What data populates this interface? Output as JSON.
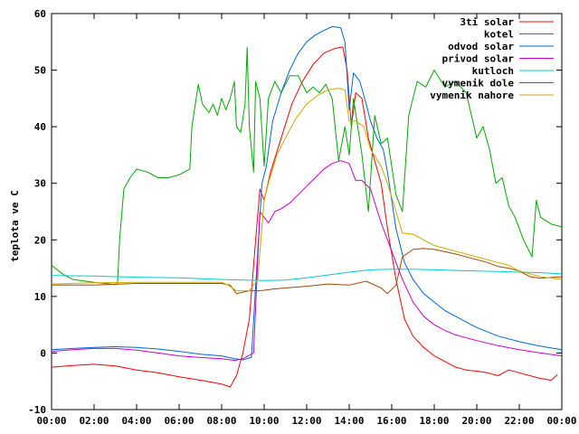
{
  "chart_data": {
    "type": "line",
    "title": "",
    "xlabel": "",
    "ylabel": "teplota ve C",
    "xlim": [
      "00:00",
      "24:00"
    ],
    "ylim": [
      -10,
      60
    ],
    "grid": false,
    "legend_position": "top-right",
    "x_ticks": [
      "00:00",
      "02:00",
      "04:00",
      "06:00",
      "08:00",
      "10:00",
      "12:00",
      "14:00",
      "16:00",
      "18:00",
      "20:00",
      "22:00",
      "00:00"
    ],
    "y_ticks": [
      "-10",
      "0",
      "10",
      "20",
      "30",
      "40",
      "50",
      "60"
    ],
    "x_unit": "hours",
    "series": [
      {
        "name": "3ti solar",
        "color": "#ff0000",
        "points": [
          [
            0,
            -2.5
          ],
          [
            1,
            -2.2
          ],
          [
            2,
            -2
          ],
          [
            3,
            -2.3
          ],
          [
            4,
            -3
          ],
          [
            5,
            -3.5
          ],
          [
            6,
            -4.2
          ],
          [
            7,
            -4.8
          ],
          [
            8,
            -5.5
          ],
          [
            8.4,
            -6
          ],
          [
            8.7,
            -4
          ],
          [
            9.0,
            0
          ],
          [
            9.3,
            6
          ],
          [
            9.6,
            20
          ],
          [
            9.8,
            29
          ],
          [
            10.0,
            27
          ],
          [
            10.3,
            32
          ],
          [
            10.8,
            38
          ],
          [
            11.3,
            44
          ],
          [
            11.8,
            48
          ],
          [
            12.3,
            51
          ],
          [
            12.8,
            53
          ],
          [
            13.3,
            53.8
          ],
          [
            13.7,
            54.1
          ],
          [
            13.9,
            50
          ],
          [
            14.1,
            40
          ],
          [
            14.3,
            46
          ],
          [
            14.6,
            45
          ],
          [
            14.9,
            38
          ],
          [
            15.2,
            34
          ],
          [
            15.5,
            30
          ],
          [
            15.8,
            22
          ],
          [
            16.2,
            13
          ],
          [
            16.6,
            6
          ],
          [
            17,
            3
          ],
          [
            17.5,
            1
          ],
          [
            18,
            -0.5
          ],
          [
            18.5,
            -1.5
          ],
          [
            19,
            -2.5
          ],
          [
            19.5,
            -3
          ],
          [
            20,
            -3.2
          ],
          [
            20.5,
            -3.5
          ],
          [
            21,
            -4
          ],
          [
            21.5,
            -3
          ],
          [
            22,
            -3.5
          ],
          [
            22.5,
            -4
          ],
          [
            23,
            -4.5
          ],
          [
            23.5,
            -4.8
          ],
          [
            23.8,
            -3.8
          ]
        ]
      },
      {
        "name": "kotel",
        "color": "#00aa00",
        "points": [
          [
            0,
            15.5
          ],
          [
            0.5,
            14
          ],
          [
            1,
            13
          ],
          [
            2,
            12.5
          ],
          [
            3,
            12.1
          ],
          [
            3.1,
            12.3
          ],
          [
            3.2,
            20
          ],
          [
            3.4,
            29
          ],
          [
            3.7,
            31
          ],
          [
            4,
            32.5
          ],
          [
            4.5,
            32
          ],
          [
            5,
            31
          ],
          [
            5.5,
            31
          ],
          [
            6,
            31.5
          ],
          [
            6.5,
            32.5
          ],
          [
            6.6,
            40
          ],
          [
            6.9,
            47.5
          ],
          [
            7.1,
            44
          ],
          [
            7.4,
            42.5
          ],
          [
            7.6,
            44
          ],
          [
            7.8,
            42
          ],
          [
            8,
            45
          ],
          [
            8.2,
            43
          ],
          [
            8.4,
            45
          ],
          [
            8.6,
            48
          ],
          [
            8.7,
            40
          ],
          [
            8.9,
            39
          ],
          [
            9.1,
            44
          ],
          [
            9.2,
            54
          ],
          [
            9.3,
            40
          ],
          [
            9.5,
            32
          ],
          [
            9.6,
            48
          ],
          [
            9.8,
            45
          ],
          [
            10,
            33
          ],
          [
            10.2,
            45
          ],
          [
            10.5,
            48
          ],
          [
            10.8,
            46
          ],
          [
            11.2,
            49
          ],
          [
            11.6,
            49
          ],
          [
            12,
            46
          ],
          [
            12.3,
            47
          ],
          [
            12.6,
            46
          ],
          [
            12.9,
            47.5
          ],
          [
            13.2,
            45
          ],
          [
            13.5,
            34
          ],
          [
            13.8,
            40
          ],
          [
            14,
            35
          ],
          [
            14.2,
            45
          ],
          [
            14.6,
            35
          ],
          [
            14.9,
            25
          ],
          [
            15.2,
            42
          ],
          [
            15.5,
            37
          ],
          [
            15.8,
            38
          ],
          [
            16.2,
            28
          ],
          [
            16.5,
            25
          ],
          [
            16.8,
            42
          ],
          [
            17.2,
            48
          ],
          [
            17.6,
            47
          ],
          [
            18,
            50
          ],
          [
            18.5,
            47
          ],
          [
            19,
            48
          ],
          [
            19.5,
            46
          ],
          [
            20,
            38
          ],
          [
            20.3,
            40
          ],
          [
            20.6,
            36
          ],
          [
            20.9,
            30
          ],
          [
            21.2,
            31
          ],
          [
            21.5,
            26
          ],
          [
            21.8,
            24
          ],
          [
            22.2,
            20
          ],
          [
            22.6,
            17
          ],
          [
            22.8,
            27
          ],
          [
            23,
            24
          ],
          [
            23.5,
            22.8
          ],
          [
            24,
            22.3
          ]
        ]
      },
      {
        "name": "odvod solar",
        "color": "#0066dd",
        "points": [
          [
            0,
            0.6
          ],
          [
            1,
            0.8
          ],
          [
            2,
            1
          ],
          [
            3,
            1.1
          ],
          [
            4,
            1
          ],
          [
            5,
            0.7
          ],
          [
            6,
            0.3
          ],
          [
            7,
            -0.2
          ],
          [
            8,
            -0.5
          ],
          [
            8.6,
            -1
          ],
          [
            9.0,
            -1.2
          ],
          [
            9.4,
            -0.8
          ],
          [
            9.7,
            18
          ],
          [
            9.9,
            30
          ],
          [
            10.1,
            33
          ],
          [
            10.4,
            41
          ],
          [
            10.8,
            46
          ],
          [
            11.2,
            50
          ],
          [
            11.6,
            53
          ],
          [
            12,
            55
          ],
          [
            12.4,
            56.2
          ],
          [
            12.8,
            57
          ],
          [
            13.2,
            57.7
          ],
          [
            13.6,
            57.5
          ],
          [
            13.8,
            55
          ],
          [
            14.0,
            43
          ],
          [
            14.2,
            49.5
          ],
          [
            14.5,
            48
          ],
          [
            14.8,
            44
          ],
          [
            15.0,
            41
          ],
          [
            15.3,
            38
          ],
          [
            15.6,
            36
          ],
          [
            15.8,
            32
          ],
          [
            16.2,
            22
          ],
          [
            16.6,
            16
          ],
          [
            17,
            13
          ],
          [
            17.5,
            10.5
          ],
          [
            18,
            9
          ],
          [
            18.5,
            7.5
          ],
          [
            19,
            6.5
          ],
          [
            20,
            4.5
          ],
          [
            21,
            3
          ],
          [
            22,
            2
          ],
          [
            23,
            1.2
          ],
          [
            24,
            0.6
          ]
        ]
      },
      {
        "name": "privod solar",
        "color": "#cc00cc",
        "points": [
          [
            0,
            0.3
          ],
          [
            1,
            0.6
          ],
          [
            2,
            0.8
          ],
          [
            3,
            0.8
          ],
          [
            4,
            0.5
          ],
          [
            5,
            0
          ],
          [
            6,
            -0.5
          ],
          [
            7,
            -0.8
          ],
          [
            8,
            -1
          ],
          [
            8.6,
            -1.3
          ],
          [
            9.0,
            -1
          ],
          [
            9.5,
            0
          ],
          [
            9.8,
            25
          ],
          [
            10.0,
            24
          ],
          [
            10.2,
            23
          ],
          [
            10.5,
            25
          ],
          [
            10.8,
            25.5
          ],
          [
            11.2,
            26.5
          ],
          [
            11.6,
            28
          ],
          [
            12,
            29.5
          ],
          [
            12.4,
            31
          ],
          [
            12.8,
            32.5
          ],
          [
            13.2,
            33.5
          ],
          [
            13.6,
            34
          ],
          [
            14,
            33.5
          ],
          [
            14.3,
            30.5
          ],
          [
            14.6,
            30.5
          ],
          [
            15,
            29
          ],
          [
            15.5,
            23
          ],
          [
            16,
            18
          ],
          [
            16.5,
            13
          ],
          [
            17,
            9
          ],
          [
            17.5,
            6.5
          ],
          [
            18,
            5
          ],
          [
            18.5,
            4
          ],
          [
            19,
            3.2
          ],
          [
            20,
            2.2
          ],
          [
            21,
            1.3
          ],
          [
            22,
            0.6
          ],
          [
            23,
            0
          ],
          [
            24,
            -0.5
          ]
        ]
      },
      {
        "name": "kutloch",
        "color": "#00cccc",
        "points": [
          [
            0,
            13.7
          ],
          [
            2,
            13.6
          ],
          [
            4,
            13.4
          ],
          [
            6,
            13.3
          ],
          [
            8,
            13
          ],
          [
            10,
            12.8
          ],
          [
            11,
            12.9
          ],
          [
            12,
            13.3
          ],
          [
            13,
            13.8
          ],
          [
            14,
            14.3
          ],
          [
            15,
            14.7
          ],
          [
            16,
            14.8
          ],
          [
            17,
            14.8
          ],
          [
            18,
            14.7
          ],
          [
            19,
            14.6
          ],
          [
            20,
            14.5
          ],
          [
            21,
            14.4
          ],
          [
            22,
            14.3
          ],
          [
            23,
            14.2
          ],
          [
            24,
            14
          ]
        ]
      },
      {
        "name": "vymenik dole",
        "color": "#aa4400",
        "points": [
          [
            0,
            12
          ],
          [
            2,
            12
          ],
          [
            4,
            12.3
          ],
          [
            6,
            12.3
          ],
          [
            8,
            12.3
          ],
          [
            8.4,
            12
          ],
          [
            8.7,
            10.5
          ],
          [
            9.3,
            11
          ],
          [
            9.8,
            11
          ],
          [
            10.4,
            11.3
          ],
          [
            11,
            11.5
          ],
          [
            12,
            11.8
          ],
          [
            13,
            12.2
          ],
          [
            14,
            12
          ],
          [
            14.8,
            12.7
          ],
          [
            15.5,
            11.5
          ],
          [
            15.8,
            10.5
          ],
          [
            16.2,
            12
          ],
          [
            16.5,
            17
          ],
          [
            17,
            18.3
          ],
          [
            17.5,
            18.5
          ],
          [
            18,
            18.3
          ],
          [
            19,
            17.5
          ],
          [
            20,
            16.5
          ],
          [
            20.5,
            16
          ],
          [
            21,
            15.3
          ],
          [
            21.5,
            15
          ],
          [
            22,
            14.5
          ],
          [
            22.5,
            13.5
          ],
          [
            23,
            13.2
          ],
          [
            24,
            13.5
          ]
        ]
      },
      {
        "name": "vymenik nahore",
        "color": "#ccaa00",
        "points": [
          [
            0,
            12.2
          ],
          [
            2,
            12.4
          ],
          [
            4,
            12.5
          ],
          [
            6,
            12.5
          ],
          [
            8,
            12.5
          ],
          [
            8.3,
            12
          ],
          [
            8.7,
            11
          ],
          [
            9.3,
            11
          ],
          [
            9.7,
            13
          ],
          [
            10,
            27
          ],
          [
            10.2,
            30
          ],
          [
            10.6,
            35
          ],
          [
            11,
            38
          ],
          [
            11.5,
            41.5
          ],
          [
            12,
            44
          ],
          [
            12.5,
            45.5
          ],
          [
            13,
            46.5
          ],
          [
            13.5,
            46.8
          ],
          [
            13.8,
            46.5
          ],
          [
            14.0,
            41
          ],
          [
            14.3,
            41
          ],
          [
            14.7,
            40
          ],
          [
            15.0,
            36
          ],
          [
            15.5,
            33
          ],
          [
            15.8,
            30
          ],
          [
            16.2,
            25
          ],
          [
            16.5,
            21.2
          ],
          [
            17,
            21
          ],
          [
            17.5,
            20
          ],
          [
            18,
            19
          ],
          [
            19,
            18
          ],
          [
            20,
            17
          ],
          [
            21,
            16
          ],
          [
            21.5,
            15.5
          ],
          [
            22,
            14.5
          ],
          [
            23,
            13.5
          ],
          [
            24,
            13
          ]
        ]
      }
    ]
  }
}
